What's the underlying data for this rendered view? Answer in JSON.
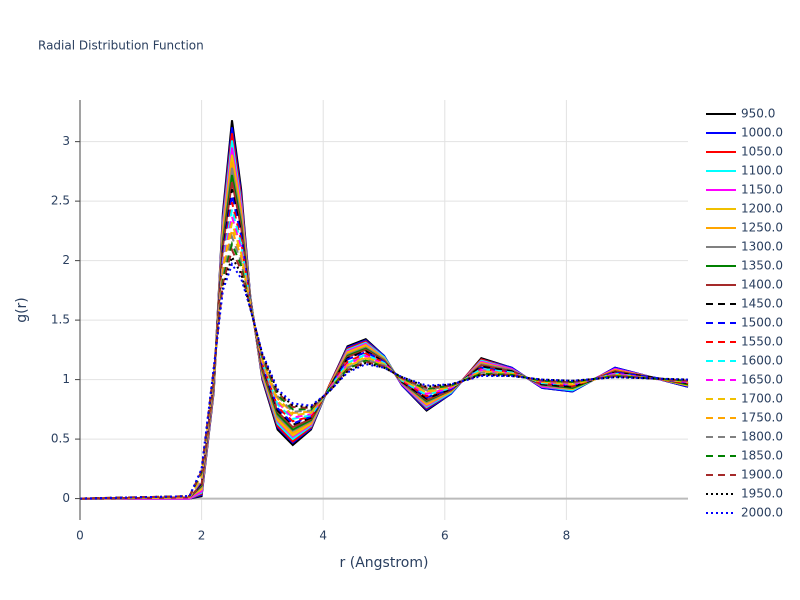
{
  "chart_data": {
    "type": "line",
    "title": "Radial Distribution Function",
    "x_label": "r (Angstrom)",
    "y_label": "g(r)",
    "xlim": [
      0,
      10
    ],
    "ylim": [
      -0.18,
      3.35
    ],
    "xticks": [
      0,
      2,
      4,
      6,
      8
    ],
    "yticks": [
      0,
      0.5,
      1,
      1.5,
      2,
      2.5,
      3
    ],
    "grid": true,
    "x": [
      0,
      1.8,
      2.0,
      2.2,
      2.35,
      2.5,
      2.65,
      2.8,
      3.0,
      3.25,
      3.5,
      3.8,
      4.1,
      4.4,
      4.7,
      5.0,
      5.3,
      5.7,
      6.1,
      6.6,
      7.1,
      7.6,
      8.1,
      8.8,
      9.4,
      10
    ],
    "series": [
      {
        "name": "950.0",
        "color": "#000000",
        "dash": "solid",
        "values": [
          0,
          0,
          0.02,
          0.9,
          2.4,
          3.18,
          2.6,
          1.7,
          1.0,
          0.58,
          0.45,
          0.58,
          0.95,
          1.28,
          1.34,
          1.2,
          0.95,
          0.74,
          0.88,
          1.18,
          1.1,
          0.93,
          0.9,
          1.1,
          1.02,
          0.94
        ]
      },
      {
        "name": "1000.0",
        "color": "#0000ff",
        "dash": "solid",
        "values": [
          0,
          0,
          0.03,
          0.91,
          2.37,
          3.12,
          2.56,
          1.7,
          1.01,
          0.6,
          0.47,
          0.59,
          0.95,
          1.27,
          1.33,
          1.2,
          0.95,
          0.75,
          0.88,
          1.17,
          1.1,
          0.93,
          0.9,
          1.1,
          1.02,
          0.94
        ]
      },
      {
        "name": "1050.0",
        "color": "#ff0000",
        "dash": "solid",
        "values": [
          0,
          0,
          0.04,
          0.92,
          2.34,
          3.07,
          2.53,
          1.69,
          1.02,
          0.61,
          0.48,
          0.6,
          0.95,
          1.26,
          1.32,
          1.19,
          0.96,
          0.76,
          0.89,
          1.17,
          1.09,
          0.94,
          0.91,
          1.09,
          1.02,
          0.95
        ]
      },
      {
        "name": "1100.0",
        "color": "#00ffff",
        "dash": "solid",
        "values": [
          0,
          0,
          0.05,
          0.93,
          2.31,
          3.01,
          2.49,
          1.69,
          1.03,
          0.63,
          0.5,
          0.61,
          0.94,
          1.25,
          1.31,
          1.19,
          0.96,
          0.77,
          0.89,
          1.16,
          1.09,
          0.94,
          0.91,
          1.09,
          1.02,
          0.95
        ]
      },
      {
        "name": "1150.0",
        "color": "#ff00ff",
        "dash": "solid",
        "values": [
          0,
          0,
          0.06,
          0.94,
          2.28,
          2.95,
          2.46,
          1.68,
          1.04,
          0.65,
          0.52,
          0.62,
          0.94,
          1.24,
          1.3,
          1.18,
          0.96,
          0.78,
          0.9,
          1.15,
          1.09,
          0.94,
          0.92,
          1.09,
          1.02,
          0.95
        ]
      },
      {
        "name": "1200.0",
        "color": "#f0c000",
        "dash": "solid",
        "values": [
          0,
          0.01,
          0.08,
          0.95,
          2.25,
          2.89,
          2.42,
          1.68,
          1.05,
          0.66,
          0.53,
          0.63,
          0.94,
          1.23,
          1.29,
          1.18,
          0.97,
          0.79,
          0.9,
          1.14,
          1.08,
          0.95,
          0.92,
          1.08,
          1.02,
          0.95
        ]
      },
      {
        "name": "1250.0",
        "color": "#ffa500",
        "dash": "solid",
        "values": [
          0,
          0.01,
          0.09,
          0.96,
          2.21,
          2.83,
          2.39,
          1.67,
          1.06,
          0.68,
          0.55,
          0.64,
          0.94,
          1.22,
          1.28,
          1.17,
          0.97,
          0.8,
          0.9,
          1.14,
          1.08,
          0.95,
          0.93,
          1.08,
          1.02,
          0.96
        ]
      },
      {
        "name": "1300.0",
        "color": "#808080",
        "dash": "solid",
        "values": [
          0,
          0.01,
          0.1,
          0.97,
          2.18,
          2.78,
          2.35,
          1.67,
          1.07,
          0.69,
          0.57,
          0.65,
          0.93,
          1.21,
          1.27,
          1.17,
          0.97,
          0.81,
          0.91,
          1.13,
          1.08,
          0.95,
          0.93,
          1.07,
          1.02,
          0.96
        ]
      },
      {
        "name": "1350.0",
        "color": "#008000",
        "dash": "solid",
        "values": [
          0,
          0.01,
          0.11,
          0.98,
          2.15,
          2.72,
          2.31,
          1.66,
          1.08,
          0.71,
          0.58,
          0.66,
          0.93,
          1.2,
          1.26,
          1.16,
          0.98,
          0.82,
          0.91,
          1.12,
          1.07,
          0.96,
          0.93,
          1.07,
          1.02,
          0.96
        ]
      },
      {
        "name": "1400.0",
        "color": "#a52a2a",
        "dash": "solid",
        "values": [
          0,
          0.01,
          0.12,
          0.99,
          2.12,
          2.66,
          2.28,
          1.66,
          1.09,
          0.73,
          0.6,
          0.67,
          0.93,
          1.19,
          1.25,
          1.16,
          0.98,
          0.83,
          0.91,
          1.12,
          1.07,
          0.96,
          0.94,
          1.07,
          1.02,
          0.97
        ]
      },
      {
        "name": "1450.0",
        "color": "#000000",
        "dash": "dash",
        "values": [
          0,
          0.01,
          0.13,
          1.0,
          2.09,
          2.6,
          2.24,
          1.65,
          1.11,
          0.74,
          0.62,
          0.68,
          0.93,
          1.18,
          1.24,
          1.15,
          0.98,
          0.84,
          0.92,
          1.11,
          1.07,
          0.96,
          0.94,
          1.06,
          1.02,
          0.97
        ]
      },
      {
        "name": "1500.0",
        "color": "#0000ff",
        "dash": "dash",
        "values": [
          0,
          0.01,
          0.14,
          1.01,
          2.06,
          2.55,
          2.21,
          1.65,
          1.12,
          0.76,
          0.63,
          0.69,
          0.92,
          1.17,
          1.23,
          1.15,
          0.99,
          0.85,
          0.92,
          1.1,
          1.06,
          0.97,
          0.95,
          1.06,
          1.02,
          0.97
        ]
      },
      {
        "name": "1550.0",
        "color": "#ff0000",
        "dash": "dash",
        "values": [
          0,
          0.01,
          0.15,
          1.01,
          2.03,
          2.49,
          2.17,
          1.64,
          1.13,
          0.77,
          0.65,
          0.69,
          0.92,
          1.15,
          1.22,
          1.14,
          0.99,
          0.86,
          0.93,
          1.09,
          1.06,
          0.97,
          0.95,
          1.05,
          1.01,
          0.97
        ]
      },
      {
        "name": "1600.0",
        "color": "#00ffff",
        "dash": "dash",
        "values": [
          0,
          0.01,
          0.16,
          1.02,
          2.0,
          2.43,
          2.14,
          1.64,
          1.14,
          0.79,
          0.67,
          0.7,
          0.92,
          1.14,
          1.21,
          1.14,
          0.99,
          0.87,
          0.93,
          1.09,
          1.06,
          0.97,
          0.96,
          1.05,
          1.01,
          0.98
        ]
      },
      {
        "name": "1650.0",
        "color": "#ff00ff",
        "dash": "dash",
        "values": [
          0,
          0.01,
          0.17,
          1.03,
          1.97,
          2.37,
          2.1,
          1.63,
          1.15,
          0.81,
          0.68,
          0.71,
          0.92,
          1.13,
          1.2,
          1.13,
          1.0,
          0.88,
          0.93,
          1.08,
          1.05,
          0.98,
          0.96,
          1.05,
          1.01,
          0.98
        ]
      },
      {
        "name": "1700.0",
        "color": "#f0c000",
        "dash": "dash",
        "values": [
          0,
          0.01,
          0.18,
          1.04,
          1.94,
          2.32,
          2.06,
          1.63,
          1.16,
          0.82,
          0.7,
          0.72,
          0.91,
          1.12,
          1.19,
          1.13,
          1.0,
          0.89,
          0.94,
          1.07,
          1.05,
          0.98,
          0.96,
          1.04,
          1.01,
          0.98
        ]
      },
      {
        "name": "1750.0",
        "color": "#ffa500",
        "dash": "dash",
        "values": [
          0,
          0.02,
          0.2,
          1.05,
          1.91,
          2.26,
          2.03,
          1.62,
          1.17,
          0.84,
          0.72,
          0.73,
          0.91,
          1.11,
          1.18,
          1.12,
          1.0,
          0.9,
          0.94,
          1.07,
          1.05,
          0.98,
          0.97,
          1.04,
          1.01,
          0.99
        ]
      },
      {
        "name": "1800.0",
        "color": "#808080",
        "dash": "dash",
        "values": [
          0,
          0.02,
          0.21,
          1.06,
          1.87,
          2.2,
          1.99,
          1.62,
          1.18,
          0.86,
          0.73,
          0.74,
          0.91,
          1.1,
          1.17,
          1.12,
          1.01,
          0.91,
          0.95,
          1.06,
          1.04,
          0.99,
          0.97,
          1.04,
          1.01,
          0.99
        ]
      },
      {
        "name": "1850.0",
        "color": "#008000",
        "dash": "dash",
        "values": [
          0,
          0.02,
          0.22,
          1.07,
          1.84,
          2.14,
          1.96,
          1.61,
          1.19,
          0.87,
          0.75,
          0.75,
          0.91,
          1.09,
          1.16,
          1.11,
          1.01,
          0.92,
          0.95,
          1.05,
          1.04,
          0.99,
          0.98,
          1.03,
          1.01,
          0.99
        ]
      },
      {
        "name": "1900.0",
        "color": "#a52a2a",
        "dash": "dash",
        "values": [
          0,
          0.02,
          0.23,
          1.08,
          1.81,
          2.09,
          1.92,
          1.61,
          1.2,
          0.89,
          0.77,
          0.76,
          0.9,
          1.08,
          1.15,
          1.11,
          1.01,
          0.93,
          0.95,
          1.04,
          1.04,
          0.99,
          0.98,
          1.03,
          1.01,
          0.99
        ]
      },
      {
        "name": "1950.0",
        "color": "#000000",
        "dash": "dot",
        "values": [
          0,
          0.02,
          0.24,
          1.09,
          1.78,
          2.03,
          1.89,
          1.6,
          1.21,
          0.9,
          0.78,
          0.77,
          0.9,
          1.07,
          1.14,
          1.1,
          1.02,
          0.94,
          0.96,
          1.04,
          1.03,
          1.0,
          0.99,
          1.02,
          1.01,
          1.0
        ]
      },
      {
        "name": "2000.0",
        "color": "#0000ff",
        "dash": "dot",
        "values": [
          0,
          0.02,
          0.25,
          1.1,
          1.75,
          1.97,
          1.85,
          1.6,
          1.22,
          0.92,
          0.8,
          0.78,
          0.9,
          1.06,
          1.13,
          1.1,
          1.02,
          0.95,
          0.96,
          1.03,
          1.03,
          1.0,
          0.99,
          1.02,
          1.01,
          1.0
        ]
      }
    ]
  }
}
